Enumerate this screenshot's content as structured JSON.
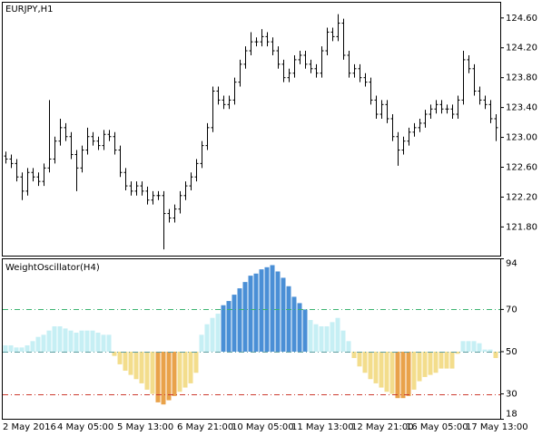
{
  "chart_data": [
    {
      "type": "ohlc",
      "title": "EURJPY,H1",
      "color": "#000000",
      "categories": [
        "2 May 2016",
        null,
        null,
        null,
        null,
        null,
        null,
        null,
        null,
        null,
        "4 May 05:00",
        null,
        null,
        null,
        null,
        null,
        null,
        null,
        null,
        null,
        null,
        "5 May 13:00",
        null,
        null,
        null,
        null,
        null,
        null,
        null,
        null,
        null,
        null,
        "6 May 21:00",
        null,
        null,
        null,
        null,
        null,
        null,
        null,
        null,
        null,
        "10 May 05:00",
        null,
        null,
        null,
        null,
        null,
        null,
        null,
        null,
        null,
        null,
        "11 May 13:00",
        null,
        null,
        null,
        null,
        null,
        null,
        null,
        null,
        null,
        null,
        "12 May 21:00",
        null,
        null,
        null,
        null,
        null,
        null,
        null,
        null,
        null,
        "16 May 05:00",
        null,
        null,
        null,
        null,
        null,
        null,
        null,
        null,
        null,
        null,
        "17 May 13:00",
        null,
        null,
        null,
        null,
        null
      ],
      "open": [
        122.75,
        122.71,
        122.65,
        122.47,
        122.28,
        122.53,
        122.47,
        122.41,
        122.59,
        122.71,
        122.95,
        123.13,
        123.01,
        122.77,
        122.59,
        122.83,
        123.01,
        122.95,
        122.89,
        123.04,
        123.01,
        122.83,
        122.53,
        122.35,
        122.28,
        122.35,
        122.28,
        122.16,
        122.22,
        122.22,
        121.98,
        121.92,
        122.04,
        122.22,
        122.35,
        122.47,
        122.65,
        122.89,
        123.13,
        123.62,
        123.5,
        123.44,
        123.5,
        123.74,
        123.98,
        124.16,
        124.28,
        124.28,
        124.35,
        124.28,
        124.16,
        123.98,
        123.8,
        123.86,
        124.04,
        124.1,
        123.98,
        123.92,
        123.86,
        124.16,
        124.41,
        124.35,
        124.53,
        124.1,
        123.86,
        123.92,
        123.8,
        123.74,
        123.5,
        123.31,
        123.44,
        123.25,
        123.01,
        122.83,
        122.95,
        123.07,
        123.13,
        123.19,
        123.31,
        123.38,
        123.44,
        123.38,
        123.38,
        123.31,
        123.5,
        124.04,
        123.92,
        123.62,
        123.5,
        123.44,
        123.25
      ],
      "high": [
        122.81,
        122.77,
        122.71,
        122.53,
        122.59,
        122.59,
        122.53,
        122.65,
        123.5,
        123.01,
        123.25,
        123.19,
        123.07,
        122.83,
        122.89,
        123.13,
        123.07,
        123.01,
        123.1,
        123.1,
        123.07,
        122.89,
        122.59,
        122.41,
        122.41,
        122.41,
        122.34,
        122.28,
        122.28,
        122.28,
        122.04,
        122.1,
        122.28,
        122.41,
        122.53,
        122.71,
        122.95,
        123.19,
        123.68,
        123.68,
        123.56,
        123.56,
        123.8,
        124.04,
        124.22,
        124.41,
        124.34,
        124.45,
        124.41,
        124.34,
        124.22,
        124.04,
        123.92,
        124.1,
        124.16,
        124.16,
        124.04,
        123.98,
        124.22,
        124.47,
        124.47,
        124.65,
        124.59,
        124.16,
        123.98,
        123.98,
        123.86,
        123.8,
        123.56,
        123.5,
        123.5,
        123.31,
        123.07,
        123.01,
        123.13,
        123.19,
        123.25,
        123.37,
        123.44,
        123.5,
        123.5,
        123.44,
        123.44,
        123.56,
        124.16,
        124.1,
        123.98,
        123.68,
        123.56,
        123.5,
        123.31
      ],
      "low": [
        122.65,
        122.59,
        122.41,
        122.16,
        122.22,
        122.41,
        122.35,
        122.35,
        122.53,
        122.65,
        122.89,
        122.95,
        122.71,
        122.28,
        122.53,
        122.77,
        122.89,
        122.83,
        122.83,
        122.95,
        122.77,
        122.47,
        122.29,
        122.22,
        122.22,
        122.22,
        122.1,
        122.1,
        122.16,
        121.5,
        121.86,
        121.86,
        121.98,
        122.16,
        122.29,
        122.41,
        122.59,
        122.83,
        123.07,
        123.44,
        123.38,
        123.38,
        123.44,
        123.68,
        123.92,
        124.1,
        124.22,
        124.22,
        124.22,
        124.1,
        123.92,
        123.74,
        123.74,
        123.8,
        123.98,
        123.92,
        123.86,
        123.8,
        123.8,
        124.1,
        124.29,
        124.29,
        124.04,
        123.8,
        123.8,
        123.74,
        123.68,
        123.44,
        123.25,
        123.25,
        123.19,
        122.95,
        122.62,
        122.77,
        122.89,
        123.01,
        123.07,
        123.13,
        123.25,
        123.32,
        123.32,
        123.32,
        123.25,
        123.25,
        123.44,
        123.86,
        123.56,
        123.44,
        123.38,
        123.19,
        122.95
      ],
      "close": [
        122.71,
        122.65,
        122.47,
        122.28,
        122.53,
        122.47,
        122.41,
        122.59,
        122.71,
        122.95,
        123.13,
        123.01,
        122.77,
        122.59,
        122.83,
        123.01,
        122.95,
        122.89,
        123.04,
        123.01,
        122.83,
        122.53,
        122.35,
        122.28,
        122.35,
        122.28,
        122.16,
        122.22,
        122.22,
        121.98,
        121.92,
        122.04,
        122.22,
        122.35,
        122.47,
        122.65,
        122.89,
        123.13,
        123.62,
        123.5,
        123.44,
        123.5,
        123.74,
        123.98,
        124.16,
        124.28,
        124.28,
        124.35,
        124.28,
        124.16,
        123.98,
        123.8,
        123.86,
        124.04,
        124.1,
        123.98,
        123.92,
        123.86,
        124.16,
        124.41,
        124.35,
        124.53,
        124.1,
        123.86,
        123.92,
        123.8,
        123.74,
        123.5,
        123.31,
        123.44,
        123.25,
        123.01,
        122.83,
        122.95,
        123.07,
        123.13,
        123.19,
        123.31,
        123.38,
        123.44,
        123.38,
        123.38,
        123.31,
        123.5,
        124.04,
        123.92,
        123.62,
        123.5,
        123.44,
        123.25,
        123.13
      ],
      "ylim": [
        121.41,
        124.81
      ],
      "yticks": [
        {
          "value": 124.6,
          "label": "124.60"
        },
        {
          "value": 124.2,
          "label": "124.20"
        },
        {
          "value": 123.8,
          "label": "123.80"
        },
        {
          "value": 123.4,
          "label": "123.40"
        },
        {
          "value": 123.0,
          "label": "123.00"
        },
        {
          "value": 122.6,
          "label": "122.60"
        },
        {
          "value": 122.2,
          "label": "122.20"
        },
        {
          "value": 121.8,
          "label": "121.80"
        }
      ]
    },
    {
      "type": "bar",
      "title": "WeightOscillator(H4)",
      "values": [
        53,
        53,
        52,
        52,
        53,
        55,
        57,
        58,
        60,
        62,
        62,
        61,
        60,
        59,
        60,
        60,
        60,
        59,
        58,
        58,
        48,
        44,
        41,
        39,
        37,
        35,
        32,
        30,
        26,
        25,
        27,
        29,
        31,
        33,
        35,
        40,
        58,
        63,
        66,
        68,
        72,
        74,
        77,
        80,
        83,
        86,
        87,
        89,
        90,
        91,
        88,
        85,
        81,
        76,
        73,
        70,
        65,
        63,
        62,
        62,
        64,
        66,
        60,
        55,
        47,
        43,
        40,
        37,
        35,
        33,
        31,
        30,
        28,
        28,
        29,
        32,
        36,
        38,
        39,
        40,
        42,
        42,
        42,
        49,
        55,
        55,
        55,
        54,
        51,
        51,
        47
      ],
      "baseline": 50,
      "levels": [
        {
          "value": 70,
          "color": "#3cb371"
        },
        {
          "value": 50,
          "color": "#5f9ea0"
        },
        {
          "value": 30,
          "color": "#cd3b2f"
        }
      ],
      "zone_colors": [
        "#4a8fd6",
        "#c6eff4",
        "#f3dd8c",
        "#e9a24a"
      ],
      "ylim": [
        18,
        94
      ],
      "yticks": [
        94,
        70,
        50,
        30,
        18
      ]
    }
  ]
}
